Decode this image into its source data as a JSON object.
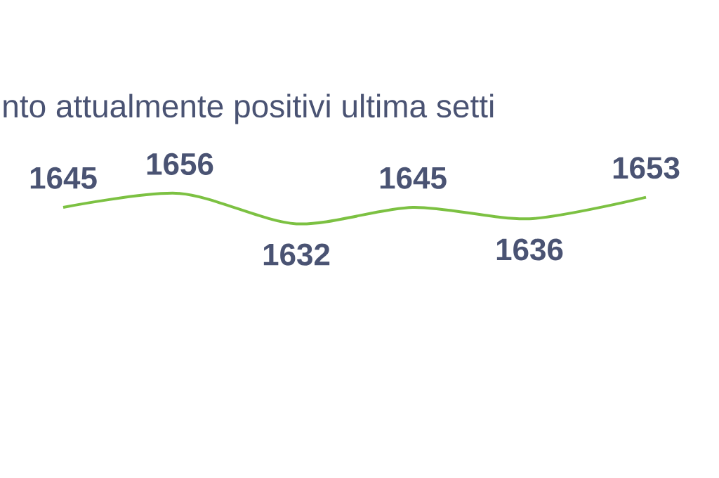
{
  "chart_data": {
    "type": "line",
    "title": "nto attualmente positivi ultima setti",
    "categories": [
      null,
      null,
      null,
      null,
      null,
      null
    ],
    "values": [
      1645,
      1656,
      1632,
      1645,
      1636,
      1653
    ],
    "data_labels": true,
    "color": "#7cc142"
  }
}
